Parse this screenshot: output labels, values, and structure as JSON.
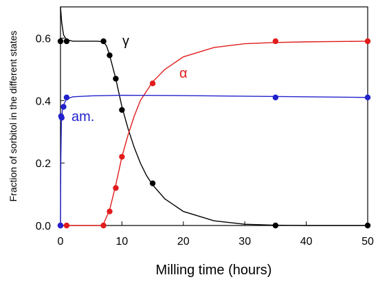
{
  "chart_data": {
    "type": "scatter",
    "title": "",
    "xlabel": "Milling time (hours)",
    "ylabel": "Fraction of sorbitol in the different states",
    "xlim": [
      0,
      50
    ],
    "ylim": [
      0,
      0.7
    ],
    "x_ticks": [
      0,
      10,
      20,
      30,
      40,
      50
    ],
    "y_ticks": [
      0.0,
      0.2,
      0.4,
      0.6
    ],
    "x_tick_labels": [
      "0",
      "10",
      "20",
      "30",
      "40",
      "50"
    ],
    "y_tick_labels": [
      "0.0",
      "0.2",
      "0.4",
      "0.6"
    ],
    "grid": false,
    "legend": "none",
    "series": [
      {
        "name": "γ",
        "color": "#000000",
        "points": [
          [
            0,
            0.59
          ],
          [
            1,
            0.59
          ],
          [
            7,
            0.59
          ],
          [
            8,
            0.545
          ],
          [
            9,
            0.47
          ],
          [
            10,
            0.37
          ],
          [
            15,
            0.135
          ],
          [
            35,
            0.0
          ],
          [
            50,
            0.0
          ]
        ],
        "fit": [
          [
            0,
            0.7
          ],
          [
            0.2,
            0.65
          ],
          [
            0.5,
            0.61
          ],
          [
            1,
            0.595
          ],
          [
            2,
            0.59
          ],
          [
            6,
            0.59
          ],
          [
            7,
            0.588
          ],
          [
            7.5,
            0.575
          ],
          [
            8,
            0.545
          ],
          [
            9,
            0.47
          ],
          [
            10,
            0.38
          ],
          [
            11,
            0.31
          ],
          [
            12,
            0.25
          ],
          [
            13,
            0.2
          ],
          [
            14,
            0.16
          ],
          [
            15,
            0.13
          ],
          [
            17,
            0.085
          ],
          [
            20,
            0.045
          ],
          [
            25,
            0.015
          ],
          [
            30,
            0.004
          ],
          [
            35,
            0.001
          ],
          [
            40,
            0.0
          ],
          [
            50,
            0.0
          ]
        ]
      },
      {
        "name": "α",
        "color": "#e11c1c",
        "points": [
          [
            0,
            0.0
          ],
          [
            1,
            0.0
          ],
          [
            7,
            0.0
          ],
          [
            8,
            0.045
          ],
          [
            9,
            0.12
          ],
          [
            10,
            0.22
          ],
          [
            15,
            0.455
          ],
          [
            35,
            0.59
          ],
          [
            50,
            0.59
          ]
        ],
        "fit": [
          [
            0,
            0.0
          ],
          [
            6.5,
            0.0
          ],
          [
            7,
            0.005
          ],
          [
            8,
            0.05
          ],
          [
            9,
            0.13
          ],
          [
            10,
            0.22
          ],
          [
            11,
            0.29
          ],
          [
            12,
            0.35
          ],
          [
            13,
            0.4
          ],
          [
            15,
            0.46
          ],
          [
            17,
            0.5
          ],
          [
            20,
            0.54
          ],
          [
            25,
            0.57
          ],
          [
            30,
            0.582
          ],
          [
            35,
            0.586
          ],
          [
            40,
            0.588
          ],
          [
            50,
            0.59
          ]
        ]
      },
      {
        "name": "am.",
        "color": "#2222cc",
        "points": [
          [
            0,
            0.0
          ],
          [
            0.1,
            0.35
          ],
          [
            0.2,
            0.345
          ],
          [
            0.5,
            0.38
          ],
          [
            1,
            0.41
          ],
          [
            35,
            0.41
          ],
          [
            50,
            0.41
          ]
        ],
        "fit": [
          [
            0,
            0.0
          ],
          [
            0.05,
            0.2
          ],
          [
            0.15,
            0.33
          ],
          [
            0.3,
            0.37
          ],
          [
            0.6,
            0.39
          ],
          [
            1,
            0.405
          ],
          [
            2,
            0.412
          ],
          [
            5,
            0.415
          ],
          [
            10,
            0.417
          ],
          [
            20,
            0.416
          ],
          [
            30,
            0.414
          ],
          [
            40,
            0.412
          ],
          [
            50,
            0.41
          ]
        ]
      }
    ],
    "annotations": [
      "γ",
      "α",
      "am."
    ]
  }
}
